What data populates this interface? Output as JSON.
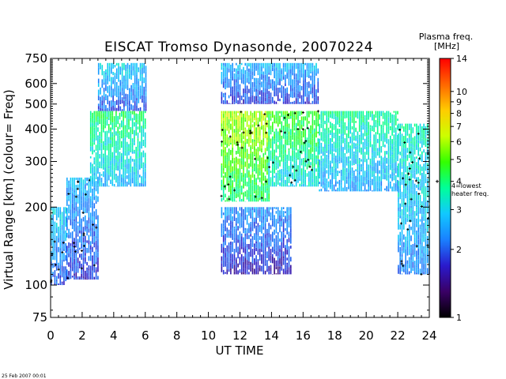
{
  "chart_data": {
    "type": "heatmap",
    "title": "EISCAT Tromso Dynasonde,  20070224",
    "xlabel": "UT TIME",
    "ylabel": "Virtual Range [km]   (colour= Freq)",
    "xlim": [
      0,
      24
    ],
    "ylim": [
      75,
      750
    ],
    "y_scale": "log",
    "x_ticks": [
      0,
      2,
      4,
      6,
      8,
      10,
      12,
      14,
      16,
      18,
      20,
      22,
      24
    ],
    "y_ticks": [
      75,
      100,
      200,
      300,
      400,
      500,
      600,
      750
    ],
    "colorbar": {
      "title_line1": "Plasma freq.",
      "title_line2": "[MHz]",
      "scale": "log",
      "range": [
        1,
        14
      ],
      "ticks": [
        1,
        2,
        3,
        4,
        5,
        6,
        7,
        8,
        9,
        10,
        14
      ],
      "annotation_line1": "4=lowest",
      "annotation_line2": "heater freq.",
      "annotation_value": 4,
      "colors": [
        "#000000",
        "#3a0066",
        "#2a1acc",
        "#1a80ff",
        "#11c8ff",
        "#00ff99",
        "#33ff00",
        "#ccff00",
        "#ffcc00",
        "#ff6600",
        "#ff0000"
      ]
    },
    "data_gaps_ut": [
      [
        6.0,
        10.8
      ],
      [
        24.0,
        24.0
      ]
    ],
    "regions": [
      {
        "ut": [
          0.0,
          1.0
        ],
        "range_km": [
          100,
          200
        ],
        "freq_mhz": 2.2,
        "markers": true
      },
      {
        "ut": [
          1.0,
          3.0
        ],
        "range_km": [
          105,
          260
        ],
        "freq_mhz": 2.0,
        "markers": true
      },
      {
        "ut": [
          2.5,
          6.0
        ],
        "range_km": [
          240,
          470
        ],
        "freq_mhz": 3.0,
        "markers": false
      },
      {
        "ut": [
          3.0,
          6.0
        ],
        "range_km": [
          470,
          720
        ],
        "freq_mhz": 2.2,
        "markers": false
      },
      {
        "ut": [
          10.8,
          13.8
        ],
        "range_km": [
          210,
          470
        ],
        "freq_mhz": 4.5,
        "markers": true
      },
      {
        "ut": [
          13.8,
          17.0
        ],
        "range_km": [
          240,
          470
        ],
        "freq_mhz": 3.5,
        "markers": true
      },
      {
        "ut": [
          10.8,
          15.2
        ],
        "range_km": [
          110,
          200
        ],
        "freq_mhz": 1.8,
        "markers": false
      },
      {
        "ut": [
          10.8,
          17.0
        ],
        "range_km": [
          500,
          720
        ],
        "freq_mhz": 2.0,
        "markers": false
      },
      {
        "ut": [
          17.0,
          22.0
        ],
        "range_km": [
          230,
          470
        ],
        "freq_mhz": 2.8,
        "markers": false
      },
      {
        "ut": [
          22.0,
          24.0
        ],
        "range_km": [
          110,
          420
        ],
        "freq_mhz": 2.6,
        "markers": true
      }
    ]
  },
  "footer": {
    "timestamp": "25 Feb 2007 00:01"
  }
}
